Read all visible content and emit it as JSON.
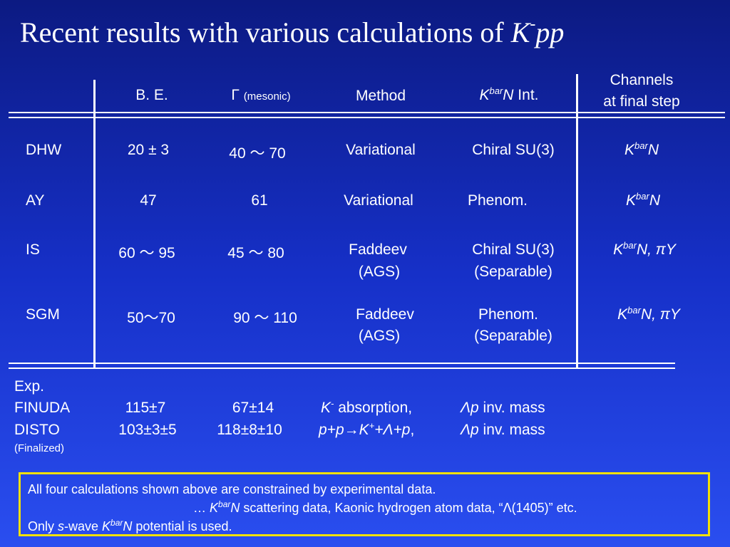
{
  "title": {
    "text": "Recent results with various calculations of ",
    "k": "K",
    "sup": "-",
    "pp": "pp"
  },
  "headers": {
    "be": "B. E.",
    "gamma": "Γ",
    "gamma_sub": "(mesonic)",
    "method": "Method",
    "kbarn_k": "K",
    "kbarn_sup": "bar",
    "kbarn_n": "N",
    "kbarn_rest": " Int.",
    "channels_l1": "Channels",
    "channels_l2": "at final step"
  },
  "rows": [
    {
      "name": "DHW",
      "be": "20 ± 3",
      "gamma": "40 ～ 70",
      "method": "Variational",
      "method2": "",
      "int": "Chiral SU(3)",
      "int2": "",
      "ch_extra": ""
    },
    {
      "name": "AY",
      "be": "47",
      "gamma": "61",
      "method": "Variational",
      "method2": "",
      "int": "Phenom.",
      "int2": "",
      "ch_extra": ""
    },
    {
      "name": "IS",
      "be": "60 ～ 95",
      "gamma": "45 ～ 80",
      "method": "Faddeev",
      "method2": "(AGS)",
      "int": "Chiral SU(3)",
      "int2": "(Separable)",
      "ch_extra": ", πY"
    },
    {
      "name": "SGM",
      "be": "50～70",
      "gamma": "90 ～ 110",
      "method": "Faddeev",
      "method2": "(AGS)",
      "int": "Phenom.",
      "int2": "(Separable)",
      "ch_extra": ", πY"
    }
  ],
  "kbarn": {
    "k": "K",
    "sup": "bar",
    "n": "N"
  },
  "exp": {
    "label": "Exp.",
    "finuda": {
      "name": "FINUDA",
      "be": "115±7",
      "gamma": "67±14",
      "method_k": "K",
      "method_sup": "-",
      "method_rest": " absorption,",
      "int_l": "Λp",
      "int_rest": " inv. mass"
    },
    "disto": {
      "name": "DISTO",
      "be": "103±3±5",
      "gamma": "118±8±10",
      "method": "p+p→K",
      "method_sup": "+",
      "method_rest": "+Λ+p",
      "method_comma": ",",
      "int_l": "Λp",
      "int_rest": " inv. mass"
    },
    "finalized": "(Finalized)"
  },
  "note": {
    "line1": "All four calculations shown above are constrained by experimental data.",
    "line2_pre": "… ",
    "line2_post": " scattering data, Kaonic hydrogen atom data, “Λ(1405)” etc.",
    "line3_pre": "Only ",
    "line3_s": "s",
    "line3_mid": "-wave ",
    "line3_post": " potential is used."
  }
}
